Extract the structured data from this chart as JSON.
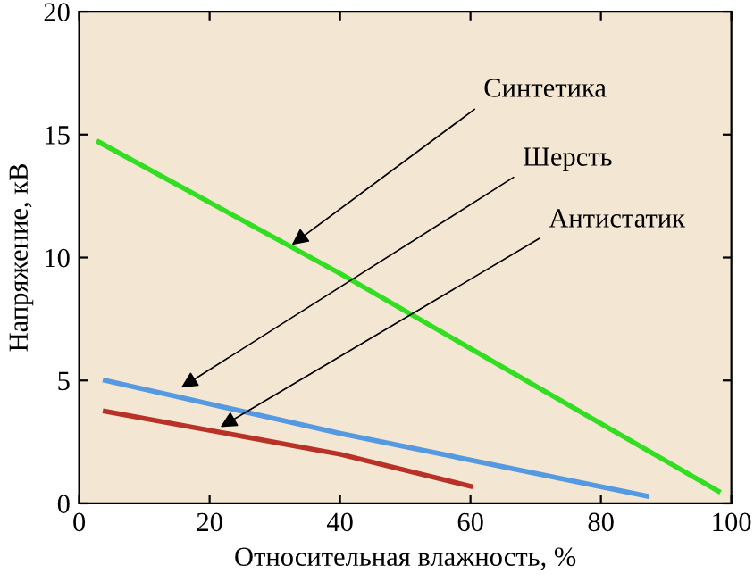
{
  "chart_data": {
    "type": "line",
    "xlabel": "Относительная влажность, %",
    "ylabel": "Напряжение, кВ",
    "xlim": [
      0,
      100
    ],
    "ylim": [
      0,
      20
    ],
    "xticks": [
      0,
      20,
      40,
      60,
      80,
      100
    ],
    "yticks": [
      0,
      5,
      10,
      15,
      20
    ],
    "grid": false,
    "legend": false,
    "series": [
      {
        "color": "#33dd22",
        "x": [
          3,
          40,
          98
        ],
        "values": [
          14.7,
          9.35,
          0.5
        ]
      },
      {
        "color": "#5599e0",
        "x": [
          4,
          40,
          87
        ],
        "values": [
          5.0,
          2.85,
          0.3
        ]
      },
      {
        "color": "#b83228",
        "x": [
          4,
          40,
          60
        ],
        "values": [
          3.75,
          2.0,
          0.7
        ]
      }
    ],
    "annotations": [
      {
        "text": "Синтетика",
        "x": 32,
        "y": 10.4
      },
      {
        "text": "Шерсть",
        "x": 15,
        "y": 4.6
      },
      {
        "text": "Антистатик",
        "x": 21,
        "y": 3.0
      }
    ]
  }
}
